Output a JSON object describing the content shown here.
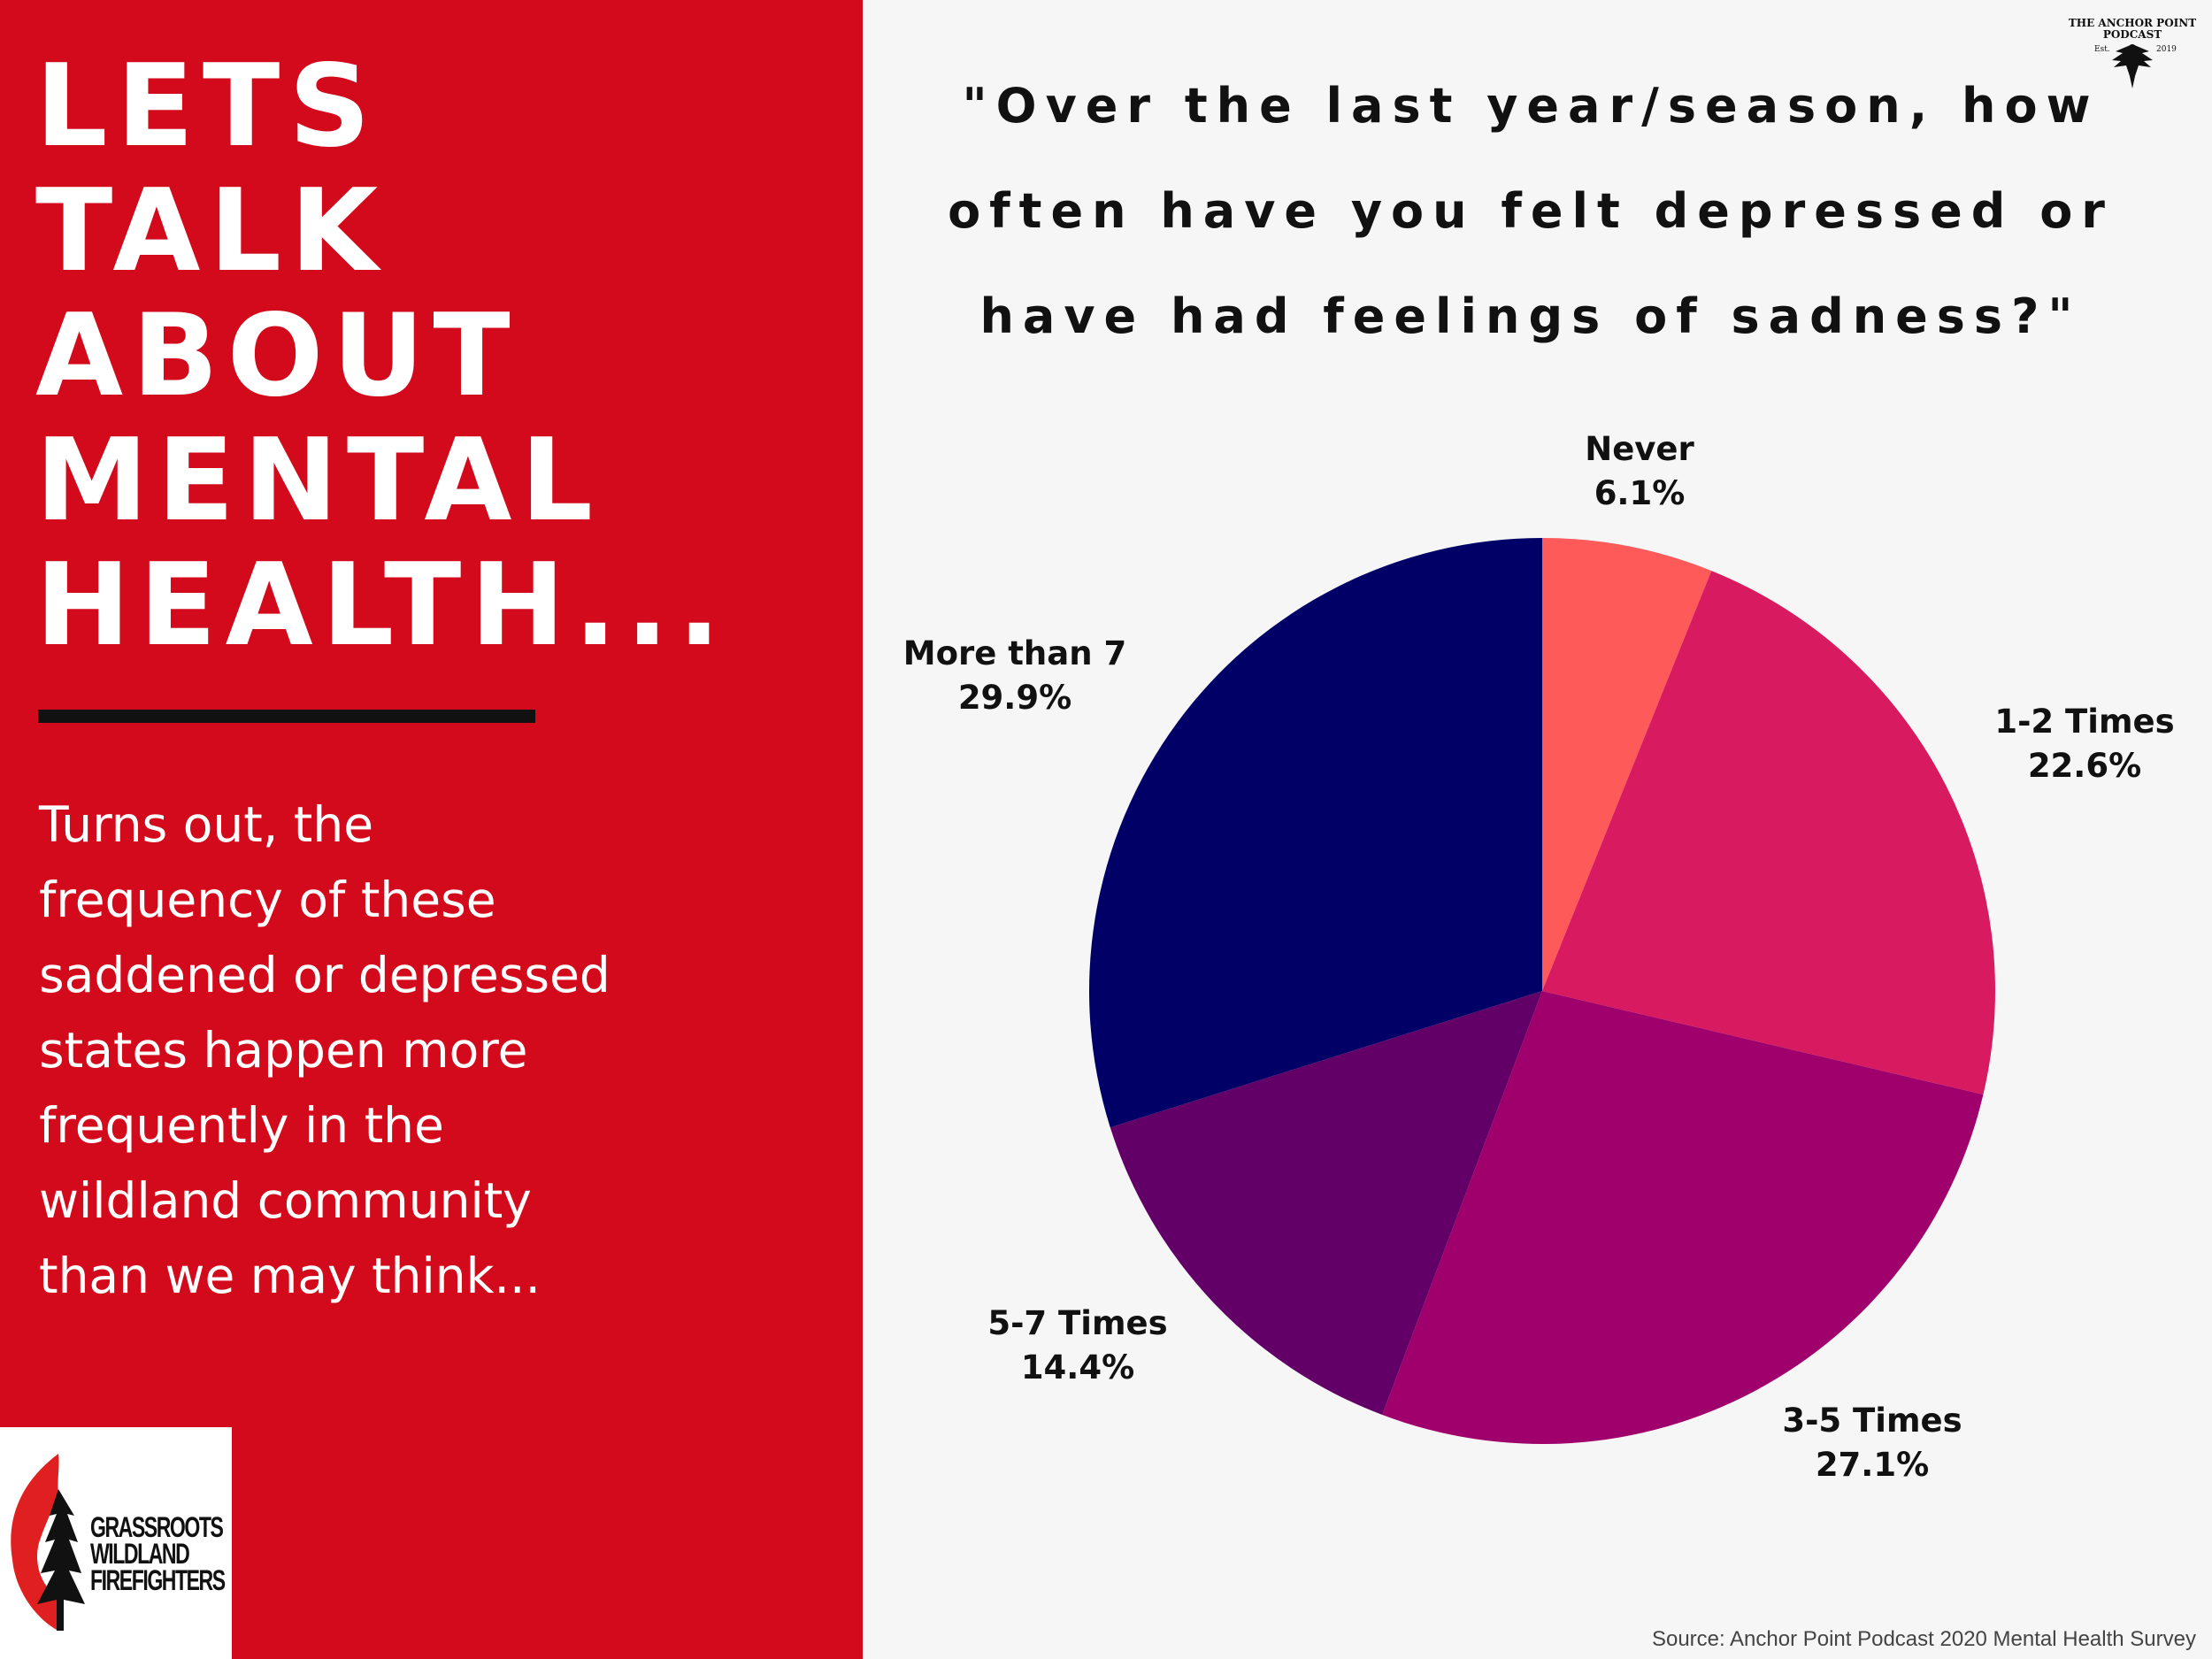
{
  "sidebar": {
    "headline_lines": [
      "LETS",
      "TALK",
      "ABOUT",
      "MENTAL",
      "HEALTH..."
    ],
    "body_lines": [
      "Turns out, the",
      "frequency of these",
      "saddened or depressed",
      "states happen more",
      "frequently in the",
      "wildland community",
      "than we may think..."
    ],
    "logo": {
      "lines": [
        "GRASSROOTS",
        "WILDLAND",
        "FIREFIGHTERS"
      ],
      "icon": "flame-tree-icon"
    }
  },
  "brand_badge": {
    "lines": [
      "THE ANCHOR POINT",
      "PODCAST"
    ],
    "est": "Est.",
    "year": "2019",
    "icon": "eagle-axe-icon"
  },
  "colors": {
    "sidebar_bg": "#d20a1b",
    "page_bg": "#f6f6f6",
    "slices": [
      "#ff5a5a",
      "#d81b60",
      "#a0006b",
      "#630068",
      "#000066"
    ]
  },
  "chart_data": {
    "type": "pie",
    "title_lines": [
      "\"Over the last year/season, how",
      "often have you felt depressed or",
      "have had feelings of sadness?\""
    ],
    "slices": [
      {
        "label": "Never",
        "value": 6.1,
        "value_label": "6.1%"
      },
      {
        "label": "1-2 Times",
        "value": 22.6,
        "value_label": "22.6%"
      },
      {
        "label": "3-5 Times",
        "value": 27.1,
        "value_label": "27.1%"
      },
      {
        "label": "5-7 Times",
        "value": 14.4,
        "value_label": "14.4%"
      },
      {
        "label": "More than 7",
        "value": 29.9,
        "value_label": "29.9%"
      }
    ],
    "start": "top",
    "direction": "clockwise",
    "legend": "none",
    "source": "Source: Anchor Point Podcast 2020 Mental Health Survey"
  }
}
